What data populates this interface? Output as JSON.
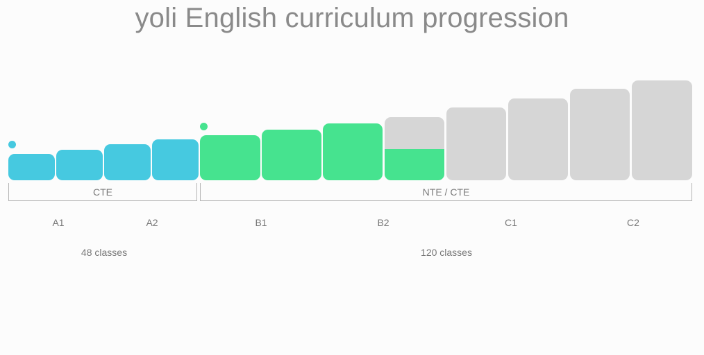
{
  "title": "yoli English curriculum progression",
  "colors": {
    "a_level": "#46c9e0",
    "b_level": "#46e38f",
    "future": "#d6d6d6"
  },
  "blocks": [
    {
      "group": "a",
      "progress": 1.0
    },
    {
      "group": "a",
      "progress": 1.0
    },
    {
      "group": "a",
      "progress": 1.0
    },
    {
      "group": "a",
      "progress": 1.0
    },
    {
      "group": "b",
      "progress": 1.0
    },
    {
      "group": "b",
      "progress": 1.0
    },
    {
      "group": "b",
      "progress": 1.0
    },
    {
      "group": "b",
      "progress": 0.5
    },
    {
      "group": "future",
      "progress": 0
    },
    {
      "group": "future",
      "progress": 0
    },
    {
      "group": "future",
      "progress": 0
    },
    {
      "group": "future",
      "progress": 0
    }
  ],
  "brackets": [
    {
      "label": "CTE"
    },
    {
      "label": "NTE / CTE"
    }
  ],
  "levels": [
    "A1",
    "A2",
    "B1",
    "B2",
    "C1",
    "C2"
  ],
  "class_counts": [
    "48 classes",
    "120 classes"
  ]
}
